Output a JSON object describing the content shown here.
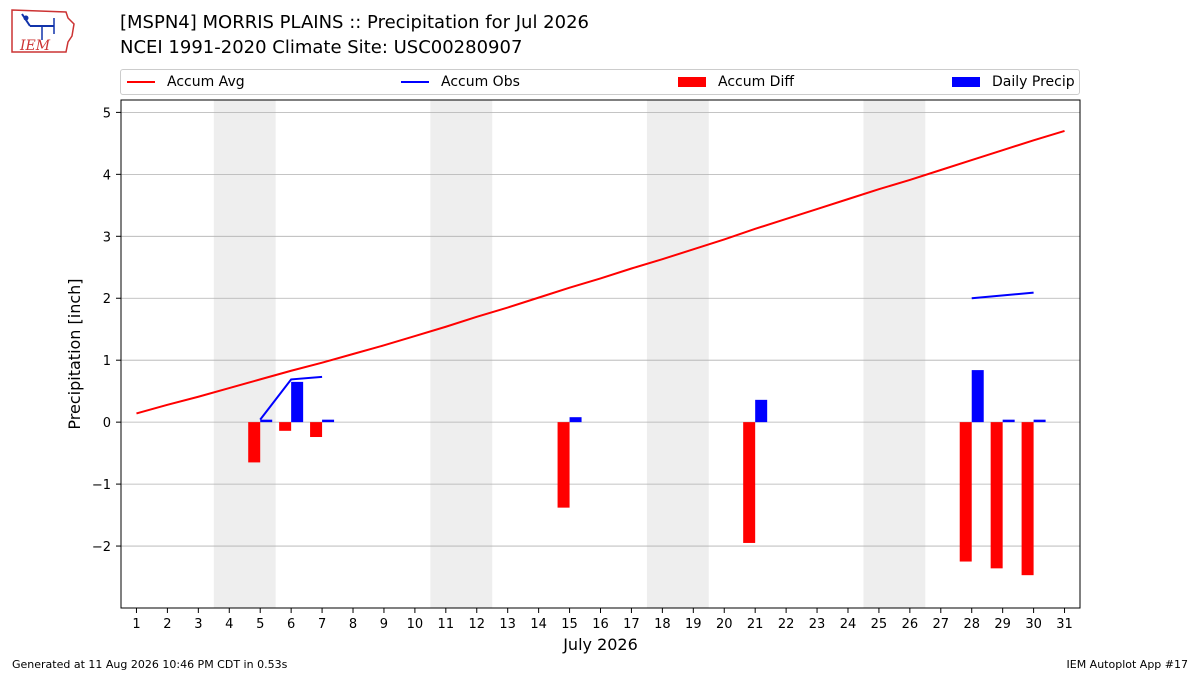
{
  "header": {
    "title_line1": "[MSPN4] MORRIS PLAINS :: Precipitation for Jul 2026",
    "title_line2": "NCEI 1991-2020 Climate Site: USC00280907"
  },
  "logo": {
    "text": "IEM"
  },
  "legend": {
    "accum_avg": "Accum Avg",
    "accum_obs": "Accum Obs",
    "accum_diff": "Accum Diff",
    "daily_precip": "Daily Precip"
  },
  "footer": {
    "left": "Generated at 11 Aug 2026 10:46 PM CDT in 0.53s",
    "right": "IEM Autoplot App #17"
  },
  "colors": {
    "accum_avg": "#ff0000",
    "accum_obs": "#0000ff",
    "accum_diff": "#ff0000",
    "daily_precip": "#0000ff",
    "weekend_shade": "#eeeeee",
    "grid": "#b0b0b0"
  },
  "chart_data": {
    "type": "bar",
    "xlabel": "July 2026",
    "ylabel": "Precipitation [inch]",
    "xlim": [
      0.5,
      31.5
    ],
    "ylim": [
      -3.0,
      5.2
    ],
    "x_ticks": [
      1,
      2,
      3,
      4,
      5,
      6,
      7,
      8,
      9,
      10,
      11,
      12,
      13,
      14,
      15,
      16,
      17,
      18,
      19,
      20,
      21,
      22,
      23,
      24,
      25,
      26,
      27,
      28,
      29,
      30,
      31
    ],
    "y_ticks": [
      -2,
      -1,
      0,
      1,
      2,
      3,
      4,
      5
    ],
    "y_tick_labels": [
      "−2",
      "−1",
      "0",
      "1",
      "2",
      "3",
      "4",
      "5"
    ],
    "grid": "horizontal",
    "legend_position": "top",
    "weekend_shading": [
      [
        3.5,
        5.5
      ],
      [
        10.5,
        12.5
      ],
      [
        17.5,
        19.5
      ],
      [
        24.5,
        26.5
      ]
    ],
    "accum_avg": {
      "x": [
        1,
        2,
        3,
        4,
        5,
        6,
        7,
        8,
        9,
        10,
        11,
        12,
        13,
        14,
        15,
        16,
        17,
        18,
        19,
        20,
        21,
        22,
        23,
        24,
        25,
        26,
        27,
        28,
        29,
        30,
        31
      ],
      "y": [
        0.14,
        0.28,
        0.41,
        0.55,
        0.69,
        0.83,
        0.96,
        1.1,
        1.24,
        1.39,
        1.54,
        1.7,
        1.85,
        2.01,
        2.17,
        2.32,
        2.48,
        2.63,
        2.79,
        2.95,
        3.12,
        3.28,
        3.44,
        3.6,
        3.76,
        3.91,
        4.07,
        4.23,
        4.39,
        4.55,
        4.7
      ]
    },
    "accum_obs": [
      {
        "x": [
          5,
          6,
          7
        ],
        "y": [
          0.04,
          0.69,
          0.73
        ]
      },
      {
        "x": [
          28,
          30
        ],
        "y": [
          2.0,
          2.09
        ]
      }
    ],
    "accum_diff": {
      "x": [
        5,
        6,
        7,
        15,
        21,
        28,
        29,
        30
      ],
      "values": [
        -0.65,
        -0.14,
        -0.24,
        -1.38,
        -1.95,
        -2.25,
        -2.36,
        -2.47
      ]
    },
    "daily_precip": {
      "x": [
        5,
        6,
        7,
        15,
        21,
        28,
        29,
        30
      ],
      "values": [
        0.04,
        0.65,
        0.04,
        0.08,
        0.36,
        0.84,
        0.04,
        0.04
      ]
    }
  }
}
